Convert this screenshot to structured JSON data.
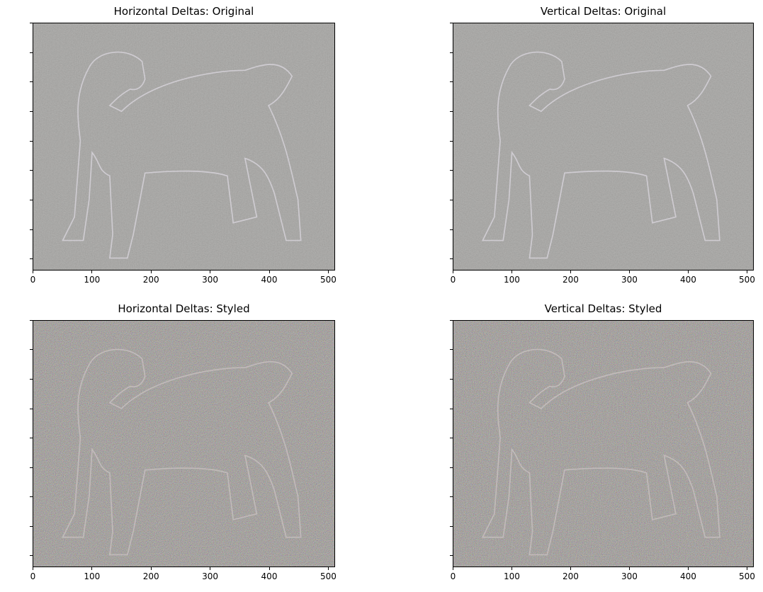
{
  "chart_data": [
    {
      "type": "image",
      "title": "Horizontal Deltas: Original",
      "xlim": [
        0,
        512
      ],
      "ylim": [
        420,
        0
      ],
      "xticks": [
        0,
        100,
        200,
        300,
        400,
        500
      ],
      "yticks": [
        0,
        50,
        100,
        150,
        200,
        250,
        300,
        350,
        400
      ],
      "style": "original",
      "base_color": "#8a8986"
    },
    {
      "type": "image",
      "title": "Vertical Deltas: Original",
      "xlim": [
        0,
        512
      ],
      "ylim": [
        420,
        0
      ],
      "xticks": [
        0,
        100,
        200,
        300,
        400,
        500
      ],
      "yticks": [
        0,
        50,
        100,
        150,
        200,
        250,
        300,
        350,
        400
      ],
      "style": "original",
      "base_color": "#8a8986"
    },
    {
      "type": "image",
      "title": "Horizontal Deltas: Styled",
      "xlim": [
        0,
        512
      ],
      "ylim": [
        420,
        0
      ],
      "xticks": [
        0,
        100,
        200,
        300,
        400,
        500
      ],
      "yticks": [
        0,
        50,
        100,
        150,
        200,
        250,
        300,
        350,
        400
      ],
      "style": "styled",
      "base_color": "#8c8580"
    },
    {
      "type": "image",
      "title": "Vertical Deltas: Styled",
      "xlim": [
        0,
        512
      ],
      "ylim": [
        420,
        0
      ],
      "xticks": [
        0,
        100,
        200,
        300,
        400,
        500
      ],
      "yticks": [
        0,
        50,
        100,
        150,
        200,
        250,
        300,
        350,
        400
      ],
      "style": "styled",
      "base_color": "#8c8580"
    }
  ]
}
